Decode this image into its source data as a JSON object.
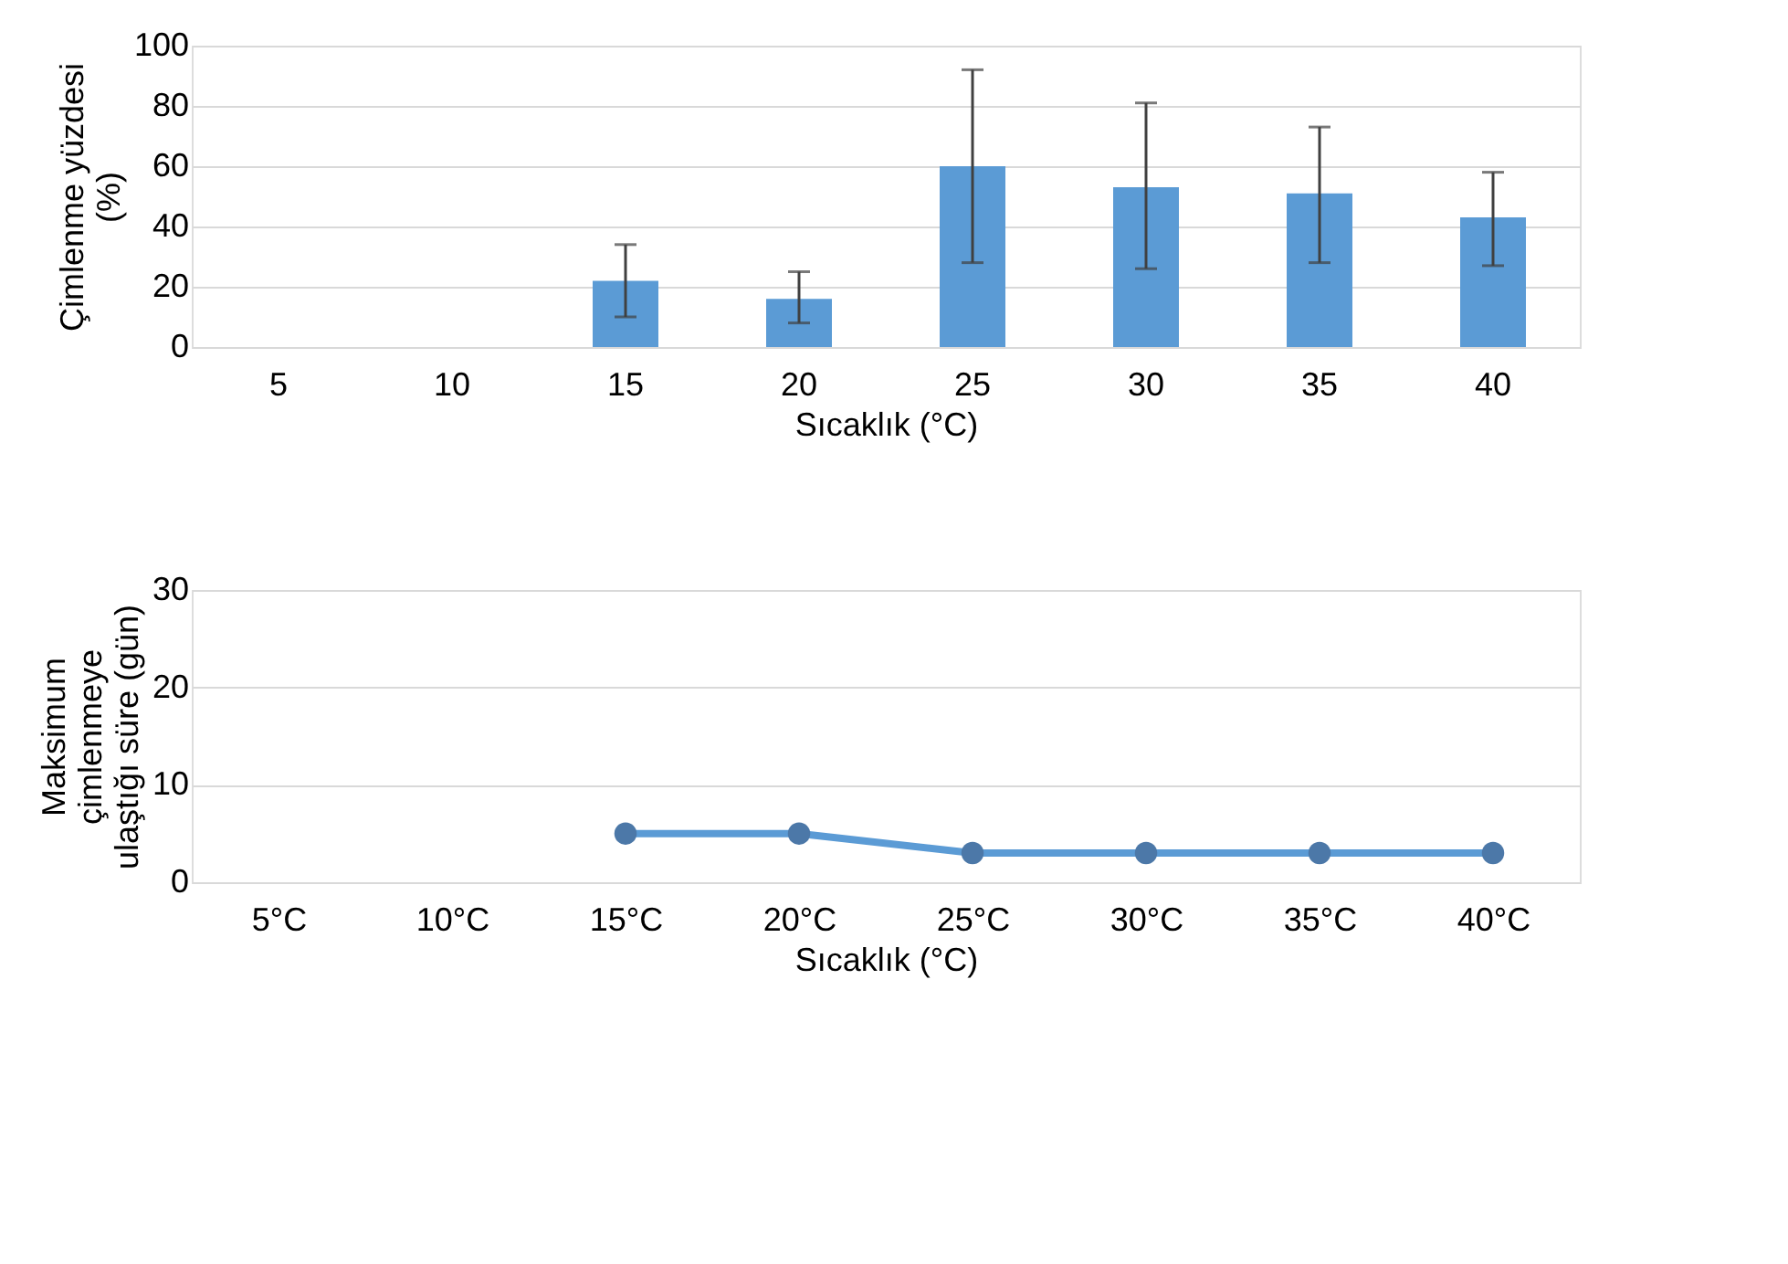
{
  "chart_data": [
    {
      "type": "bar",
      "categories": [
        "5",
        "10",
        "15",
        "20",
        "25",
        "30",
        "35",
        "40"
      ],
      "xlabel": "Sıcaklık (°C)",
      "ylabel": "Çimlenme yüzdesi\n(%)",
      "series": [
        {
          "color": "#5b9bd5",
          "values": [
            0,
            0,
            22,
            16,
            60,
            53,
            51,
            43
          ],
          "errors": [
            null,
            null,
            [
              10,
              34
            ],
            [
              8,
              25
            ],
            [
              28,
              92
            ],
            [
              26,
              81
            ],
            [
              28,
              73
            ],
            [
              27,
              58
            ]
          ]
        }
      ],
      "ylim": [
        0,
        100
      ],
      "yticks": [
        0,
        20,
        40,
        60,
        80,
        100
      ],
      "grid": "y"
    },
    {
      "type": "line",
      "categories": [
        "5°C",
        "10°C",
        "15°C",
        "20°C",
        "25°C",
        "30°C",
        "35°C",
        "40°C"
      ],
      "xlabel": "Sıcaklık (°C)",
      "ylabel": "Maksimum\nçimlenmeye\nulaştığı süre (gün)",
      "series": [
        {
          "color": "#5b9bd5",
          "values": [
            null,
            null,
            5,
            5,
            3,
            3,
            3,
            3
          ]
        }
      ],
      "ylim": [
        0,
        30
      ],
      "yticks": [
        0,
        10,
        20,
        30
      ],
      "grid": "y",
      "marker": "circle"
    }
  ]
}
